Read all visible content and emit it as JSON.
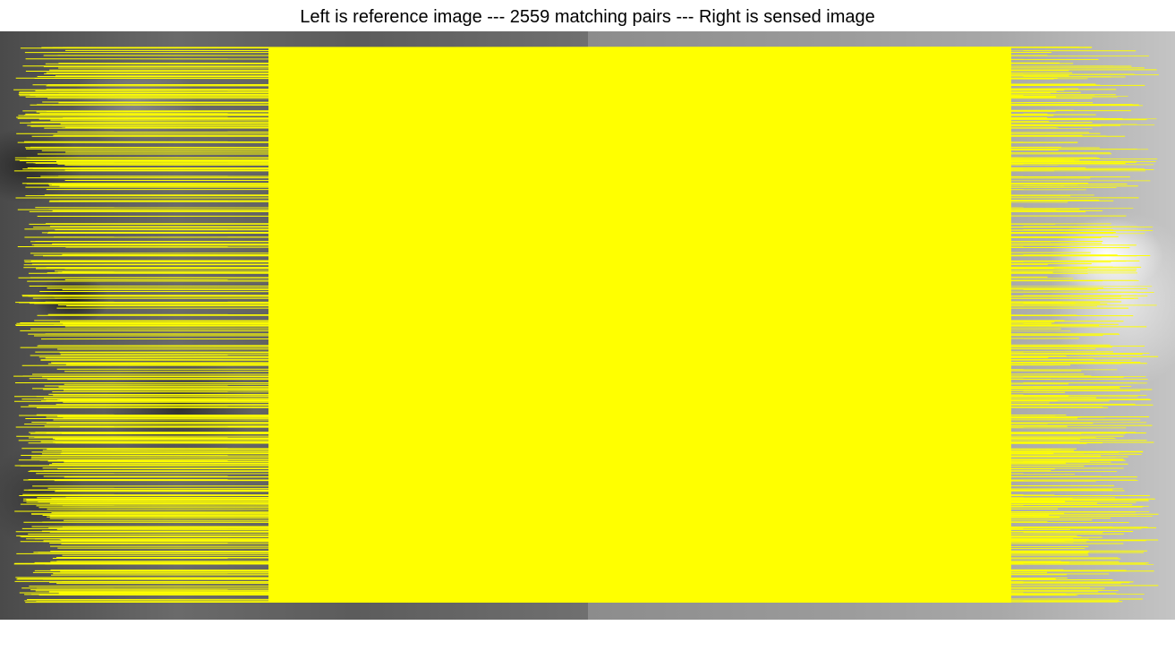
{
  "title": "Left is reference image --- 2559 matching pairs --- Right is sensed image",
  "colors": {
    "match_line": "#ffff00",
    "background": "#ffffff"
  }
}
